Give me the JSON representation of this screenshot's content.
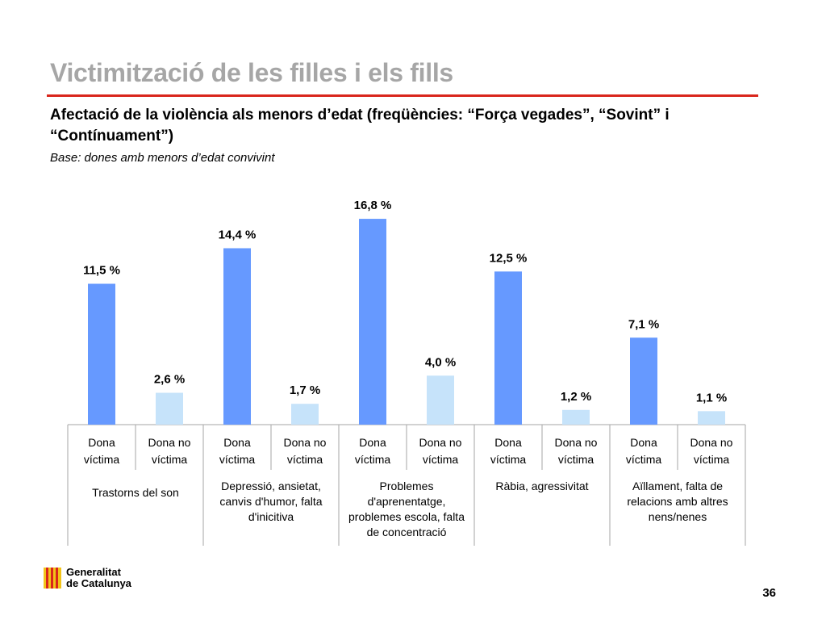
{
  "slide": {
    "title": "Victimització de les filles i els fills",
    "subtitle": "Afectació de la violència als menors d’edat (freqüències: “Força vegades”, “Sovint” i “Contínuament”)",
    "base": "Base: dones amb menors d’edat convivint",
    "page_number": "36"
  },
  "logo": {
    "line1": "Generalitat",
    "line2": "de Catalunya",
    "colors": {
      "red": "#d9261c",
      "gold": "#f2c318"
    }
  },
  "chart_data": {
    "type": "bar",
    "groups": [
      "Trastorns del son",
      "Depressió, ansietat, canvis d'humor, falta d'inicitiva",
      "Problemes d'aprenentatge, problemes escola, falta de concentració",
      "Ràbia, agressivitat",
      "Aïllament, falta de relacions amb altres nens/nenes"
    ],
    "series": [
      {
        "name": "Dona víctima",
        "color": "#6699ff",
        "values": [
          11.5,
          14.4,
          16.8,
          12.5,
          7.1
        ]
      },
      {
        "name": "Dona no víctima",
        "color": "#c6e3fa",
        "values": [
          2.6,
          1.7,
          4.0,
          1.2,
          1.1
        ]
      }
    ],
    "value_labels": [
      [
        "11,5 %",
        "2,6 %"
      ],
      [
        "14,4 %",
        "1,7 %"
      ],
      [
        "16,8 %",
        "4,0 %"
      ],
      [
        "12,5 %",
        "1,2 %"
      ],
      [
        "7,1 %",
        "1,1 %"
      ]
    ],
    "category_labels": [
      "Dona víctima",
      "Dona no víctima"
    ],
    "ylim": [
      0,
      17.2
    ],
    "grid": false,
    "legend": "none"
  }
}
